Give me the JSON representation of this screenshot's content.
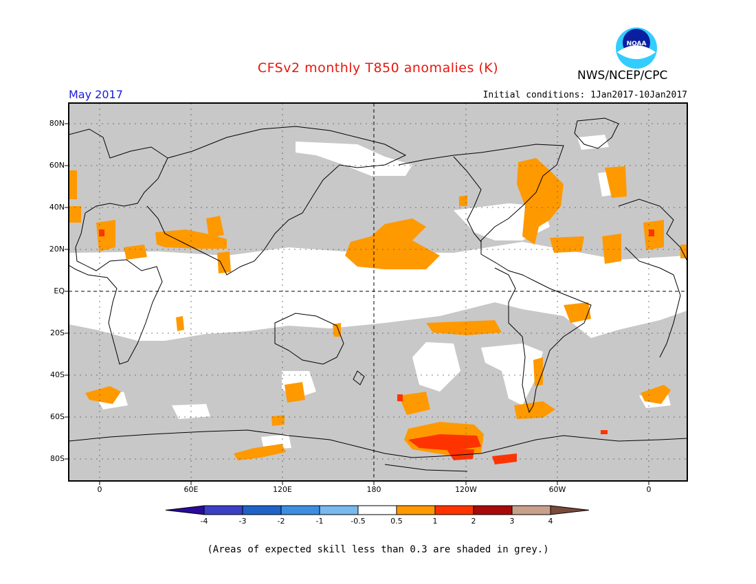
{
  "header": {
    "title": "CFSv2 monthly T850 anomalies (K)",
    "agency": "NWS/NCEP/CPC",
    "logo_text": "NOAA",
    "valid_month": "May 2017",
    "initial_conditions": "Initial conditions: 1Jan2017-10Jan2017"
  },
  "map": {
    "lat_labels": [
      "80N",
      "60N",
      "40N",
      "20N",
      "EQ",
      "20S",
      "40S",
      "60S",
      "80S"
    ],
    "lon_labels": [
      "0",
      "60E",
      "120E",
      "180",
      "120W",
      "60W",
      "0"
    ]
  },
  "colorbar": {
    "labels": [
      "-4",
      "-3",
      "-2",
      "-1",
      "-0.5",
      "0.5",
      "1",
      "2",
      "3",
      "4"
    ],
    "colors": [
      "#2a0a9a",
      "#3b3fc7",
      "#1f63c9",
      "#3d8ee0",
      "#78b9ee",
      "#ffffff",
      "#ff9900",
      "#ff3300",
      "#a80a0a",
      "#c8a08c",
      "#7a4a3a"
    ]
  },
  "legend": {
    "land_outline": "#000000",
    "grey_mask": "#c8c8c8",
    "anomaly_positive": "#ff9900",
    "anomaly_strong": "#ff3300"
  },
  "footnote": "(Areas of expected skill less than 0.3 are shaded in grey.)"
}
